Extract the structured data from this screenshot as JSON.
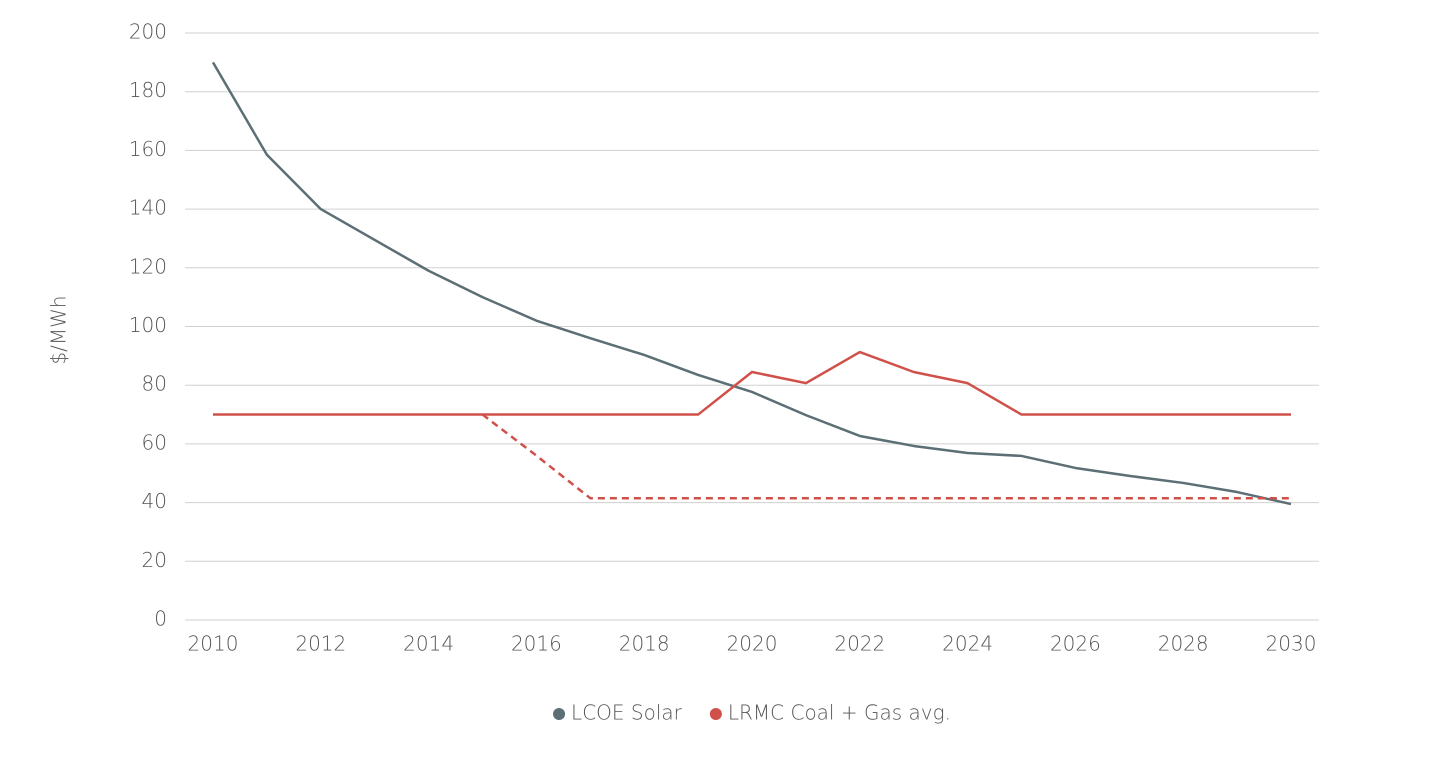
{
  "chart_data": {
    "type": "line",
    "y_label": "$/MWh",
    "x": [
      2010,
      2011,
      2012,
      2013,
      2014,
      2015,
      2016,
      2017,
      2018,
      2019,
      2020,
      2021,
      2022,
      2023,
      2024,
      2025,
      2026,
      2027,
      2028,
      2029,
      2030
    ],
    "series": [
      {
        "name": "LCOE Solar",
        "color": "#5b6f75",
        "values": [
          190,
          158.5,
          140,
          129.5,
          119,
          110,
          102,
          96,
          90.3,
          83.5,
          77.7,
          69.8,
          62.7,
          59.3,
          56.9,
          55.9,
          51.8,
          49.1,
          46.7,
          43.6,
          39.5
        ]
      },
      {
        "name": "LRMC Coal + Gas avg.",
        "color": "#d0504a",
        "values": [
          70,
          70,
          70,
          70,
          70,
          70,
          70,
          70,
          70,
          70,
          84.5,
          80.7,
          91.3,
          84.5,
          80.7,
          70,
          70,
          70,
          70,
          70,
          70
        ]
      },
      {
        "color": "#d0504a",
        "dashed": true,
        "values": [
          null,
          null,
          null,
          null,
          null,
          70,
          56,
          41.5,
          41.5,
          41.5,
          41.5,
          41.5,
          41.5,
          41.5,
          41.5,
          41.5,
          41.5,
          41.5,
          41.5,
          41.5,
          41.5
        ]
      }
    ],
    "xlim": [
      2010,
      2030
    ],
    "xticks": [
      2010,
      2012,
      2014,
      2016,
      2018,
      2020,
      2022,
      2024,
      2026,
      2028,
      2030
    ],
    "ylim": [
      0,
      200
    ],
    "yticks": [
      0,
      20,
      40,
      60,
      80,
      100,
      120,
      140,
      160,
      180,
      200
    ],
    "grid": true
  }
}
